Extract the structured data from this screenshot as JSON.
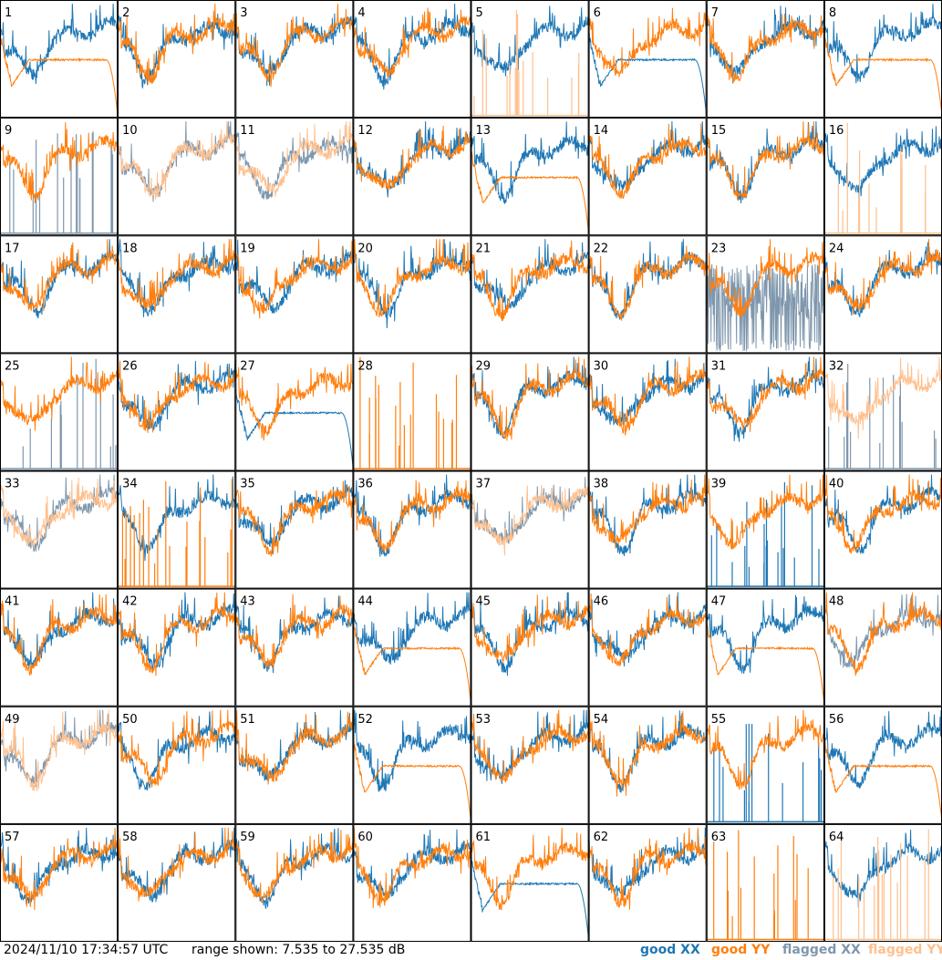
{
  "footer": {
    "timestamp": "2024/11/10 17:34:57 UTC",
    "range": "range shown: 7.535 to 27.535 dB"
  },
  "legend": [
    {
      "label": "good XX",
      "color": "#1f77b4"
    },
    {
      "label": "good YY",
      "color": "#ff7f0e"
    },
    {
      "label": "flagged XX",
      "color": "#7f97ad"
    },
    {
      "label": "flagged YY",
      "color": "#ffc08e"
    }
  ],
  "colors": {
    "good_xx": "#1f77b4",
    "good_yy": "#ff7f0e",
    "flagged_xx": "#7f97ad",
    "flagged_yy": "#ffc08e"
  },
  "chart_data": {
    "type": "line",
    "ylim": [
      7.535,
      27.535
    ],
    "yunit": "dB",
    "grid": false,
    "legend_placement": "bottom-right",
    "panel_count": 64,
    "series_keys": [
      "xx",
      "yy"
    ],
    "panels": [
      {
        "label": "1",
        "xx": "good",
        "yy": "good",
        "xx_profile": "spectrum",
        "yy_profile": "bandpass"
      },
      {
        "label": "2",
        "xx": "good",
        "yy": "good",
        "xx_profile": "spectrum",
        "yy_profile": "spectrum"
      },
      {
        "label": "3",
        "xx": "good",
        "yy": "good",
        "xx_profile": "spectrum",
        "yy_profile": "spectrum"
      },
      {
        "label": "4",
        "xx": "good",
        "yy": "good",
        "xx_profile": "spectrum",
        "yy_profile": "spectrum"
      },
      {
        "label": "5",
        "xx": "good",
        "yy": "flagged",
        "xx_profile": "spectrum",
        "yy_profile": "spikes"
      },
      {
        "label": "6",
        "xx": "good",
        "yy": "good",
        "xx_profile": "bandpass",
        "yy_profile": "spectrum"
      },
      {
        "label": "7",
        "xx": "good",
        "yy": "good",
        "xx_profile": "spectrum",
        "yy_profile": "spectrum"
      },
      {
        "label": "8",
        "xx": "good",
        "yy": "good",
        "xx_profile": "spectrum",
        "yy_profile": "bandpass"
      },
      {
        "label": "9",
        "xx": "flagged",
        "yy": "good",
        "xx_profile": "spikes",
        "yy_profile": "spectrum"
      },
      {
        "label": "10",
        "xx": "flagged",
        "yy": "flagged",
        "xx_profile": "spectrum",
        "yy_profile": "spectrum"
      },
      {
        "label": "11",
        "xx": "flagged",
        "yy": "flagged",
        "xx_profile": "spectrum",
        "yy_profile": "spectrum"
      },
      {
        "label": "12",
        "xx": "good",
        "yy": "good",
        "xx_profile": "spectrum",
        "yy_profile": "spectrum"
      },
      {
        "label": "13",
        "xx": "good",
        "yy": "good",
        "xx_profile": "spectrum",
        "yy_profile": "bandpass"
      },
      {
        "label": "14",
        "xx": "good",
        "yy": "good",
        "xx_profile": "spectrum",
        "yy_profile": "spectrum"
      },
      {
        "label": "15",
        "xx": "good",
        "yy": "good",
        "xx_profile": "spectrum",
        "yy_profile": "spectrum"
      },
      {
        "label": "16",
        "xx": "good",
        "yy": "flagged",
        "xx_profile": "spectrum",
        "yy_profile": "spikes"
      },
      {
        "label": "17",
        "xx": "good",
        "yy": "good",
        "xx_profile": "spectrum",
        "yy_profile": "spectrum"
      },
      {
        "label": "18",
        "xx": "good",
        "yy": "good",
        "xx_profile": "spectrum",
        "yy_profile": "spectrum"
      },
      {
        "label": "19",
        "xx": "good",
        "yy": "good",
        "xx_profile": "spectrum",
        "yy_profile": "spectrum"
      },
      {
        "label": "20",
        "xx": "good",
        "yy": "good",
        "xx_profile": "spectrum",
        "yy_profile": "spectrum"
      },
      {
        "label": "21",
        "xx": "good",
        "yy": "good",
        "xx_profile": "spectrum",
        "yy_profile": "spectrum"
      },
      {
        "label": "22",
        "xx": "good",
        "yy": "good",
        "xx_profile": "spectrum",
        "yy_profile": "spectrum"
      },
      {
        "label": "23",
        "xx": "flagged",
        "yy": "good",
        "xx_profile": "noisy",
        "yy_profile": "spectrum"
      },
      {
        "label": "24",
        "xx": "good",
        "yy": "good",
        "xx_profile": "spectrum",
        "yy_profile": "spectrum"
      },
      {
        "label": "25",
        "xx": "flagged",
        "yy": "good",
        "xx_profile": "spikes",
        "yy_profile": "spectrum"
      },
      {
        "label": "26",
        "xx": "good",
        "yy": "good",
        "xx_profile": "spectrum",
        "yy_profile": "spectrum"
      },
      {
        "label": "27",
        "xx": "good",
        "yy": "good",
        "xx_profile": "bandpass",
        "yy_profile": "spectrum"
      },
      {
        "label": "28",
        "xx": "good",
        "yy": "good",
        "xx_profile": "none",
        "yy_profile": "spikes"
      },
      {
        "label": "29",
        "xx": "good",
        "yy": "good",
        "xx_profile": "spectrum",
        "yy_profile": "spectrum"
      },
      {
        "label": "30",
        "xx": "good",
        "yy": "good",
        "xx_profile": "spectrum",
        "yy_profile": "spectrum"
      },
      {
        "label": "31",
        "xx": "good",
        "yy": "good",
        "xx_profile": "spectrum",
        "yy_profile": "spectrum"
      },
      {
        "label": "32",
        "xx": "flagged",
        "yy": "flagged",
        "xx_profile": "spikes",
        "yy_profile": "spectrum"
      },
      {
        "label": "33",
        "xx": "flagged",
        "yy": "flagged",
        "xx_profile": "spectrum",
        "yy_profile": "spectrum"
      },
      {
        "label": "34",
        "xx": "good",
        "yy": "good",
        "xx_profile": "spectrum",
        "yy_profile": "spikes"
      },
      {
        "label": "35",
        "xx": "good",
        "yy": "good",
        "xx_profile": "spectrum",
        "yy_profile": "spectrum"
      },
      {
        "label": "36",
        "xx": "good",
        "yy": "good",
        "xx_profile": "spectrum",
        "yy_profile": "spectrum"
      },
      {
        "label": "37",
        "xx": "flagged",
        "yy": "flagged",
        "xx_profile": "spectrum",
        "yy_profile": "spectrum"
      },
      {
        "label": "38",
        "xx": "good",
        "yy": "good",
        "xx_profile": "spectrum",
        "yy_profile": "spectrum"
      },
      {
        "label": "39",
        "xx": "good",
        "yy": "good",
        "xx_profile": "spikes",
        "yy_profile": "spectrum"
      },
      {
        "label": "40",
        "xx": "good",
        "yy": "good",
        "xx_profile": "spectrum",
        "yy_profile": "spectrum"
      },
      {
        "label": "41",
        "xx": "good",
        "yy": "good",
        "xx_profile": "spectrum",
        "yy_profile": "spectrum"
      },
      {
        "label": "42",
        "xx": "good",
        "yy": "good",
        "xx_profile": "spectrum",
        "yy_profile": "spectrum"
      },
      {
        "label": "43",
        "xx": "good",
        "yy": "good",
        "xx_profile": "spectrum",
        "yy_profile": "spectrum"
      },
      {
        "label": "44",
        "xx": "good",
        "yy": "good",
        "xx_profile": "spectrum",
        "yy_profile": "bandpass"
      },
      {
        "label": "45",
        "xx": "good",
        "yy": "good",
        "xx_profile": "spectrum",
        "yy_profile": "spectrum"
      },
      {
        "label": "46",
        "xx": "good",
        "yy": "good",
        "xx_profile": "spectrum",
        "yy_profile": "spectrum"
      },
      {
        "label": "47",
        "xx": "good",
        "yy": "good",
        "xx_profile": "spectrum",
        "yy_profile": "bandpass"
      },
      {
        "label": "48",
        "xx": "flagged",
        "yy": "good",
        "xx_profile": "spectrum",
        "yy_profile": "spectrum"
      },
      {
        "label": "49",
        "xx": "flagged",
        "yy": "flagged",
        "xx_profile": "spectrum",
        "yy_profile": "spectrum"
      },
      {
        "label": "50",
        "xx": "good",
        "yy": "good",
        "xx_profile": "spectrum",
        "yy_profile": "spectrum"
      },
      {
        "label": "51",
        "xx": "good",
        "yy": "good",
        "xx_profile": "spectrum",
        "yy_profile": "spectrum"
      },
      {
        "label": "52",
        "xx": "good",
        "yy": "good",
        "xx_profile": "spectrum",
        "yy_profile": "bandpass"
      },
      {
        "label": "53",
        "xx": "good",
        "yy": "good",
        "xx_profile": "spectrum",
        "yy_profile": "spectrum"
      },
      {
        "label": "54",
        "xx": "good",
        "yy": "good",
        "xx_profile": "spectrum",
        "yy_profile": "spectrum"
      },
      {
        "label": "55",
        "xx": "good",
        "yy": "good",
        "xx_profile": "spikes",
        "yy_profile": "spectrum"
      },
      {
        "label": "56",
        "xx": "good",
        "yy": "good",
        "xx_profile": "spectrum",
        "yy_profile": "bandpass"
      },
      {
        "label": "57",
        "xx": "good",
        "yy": "good",
        "xx_profile": "spectrum",
        "yy_profile": "spectrum"
      },
      {
        "label": "58",
        "xx": "good",
        "yy": "good",
        "xx_profile": "spectrum",
        "yy_profile": "spectrum"
      },
      {
        "label": "59",
        "xx": "good",
        "yy": "good",
        "xx_profile": "spectrum",
        "yy_profile": "spectrum"
      },
      {
        "label": "60",
        "xx": "good",
        "yy": "good",
        "xx_profile": "spectrum",
        "yy_profile": "spectrum"
      },
      {
        "label": "61",
        "xx": "good",
        "yy": "good",
        "xx_profile": "bandpass",
        "yy_profile": "spectrum"
      },
      {
        "label": "62",
        "xx": "good",
        "yy": "good",
        "xx_profile": "spectrum",
        "yy_profile": "spectrum"
      },
      {
        "label": "63",
        "xx": "good",
        "yy": "good",
        "xx_profile": "none",
        "yy_profile": "spikes"
      },
      {
        "label": "64",
        "xx": "good",
        "yy": "flagged",
        "xx_profile": "spectrum",
        "yy_profile": "spikes"
      }
    ]
  }
}
